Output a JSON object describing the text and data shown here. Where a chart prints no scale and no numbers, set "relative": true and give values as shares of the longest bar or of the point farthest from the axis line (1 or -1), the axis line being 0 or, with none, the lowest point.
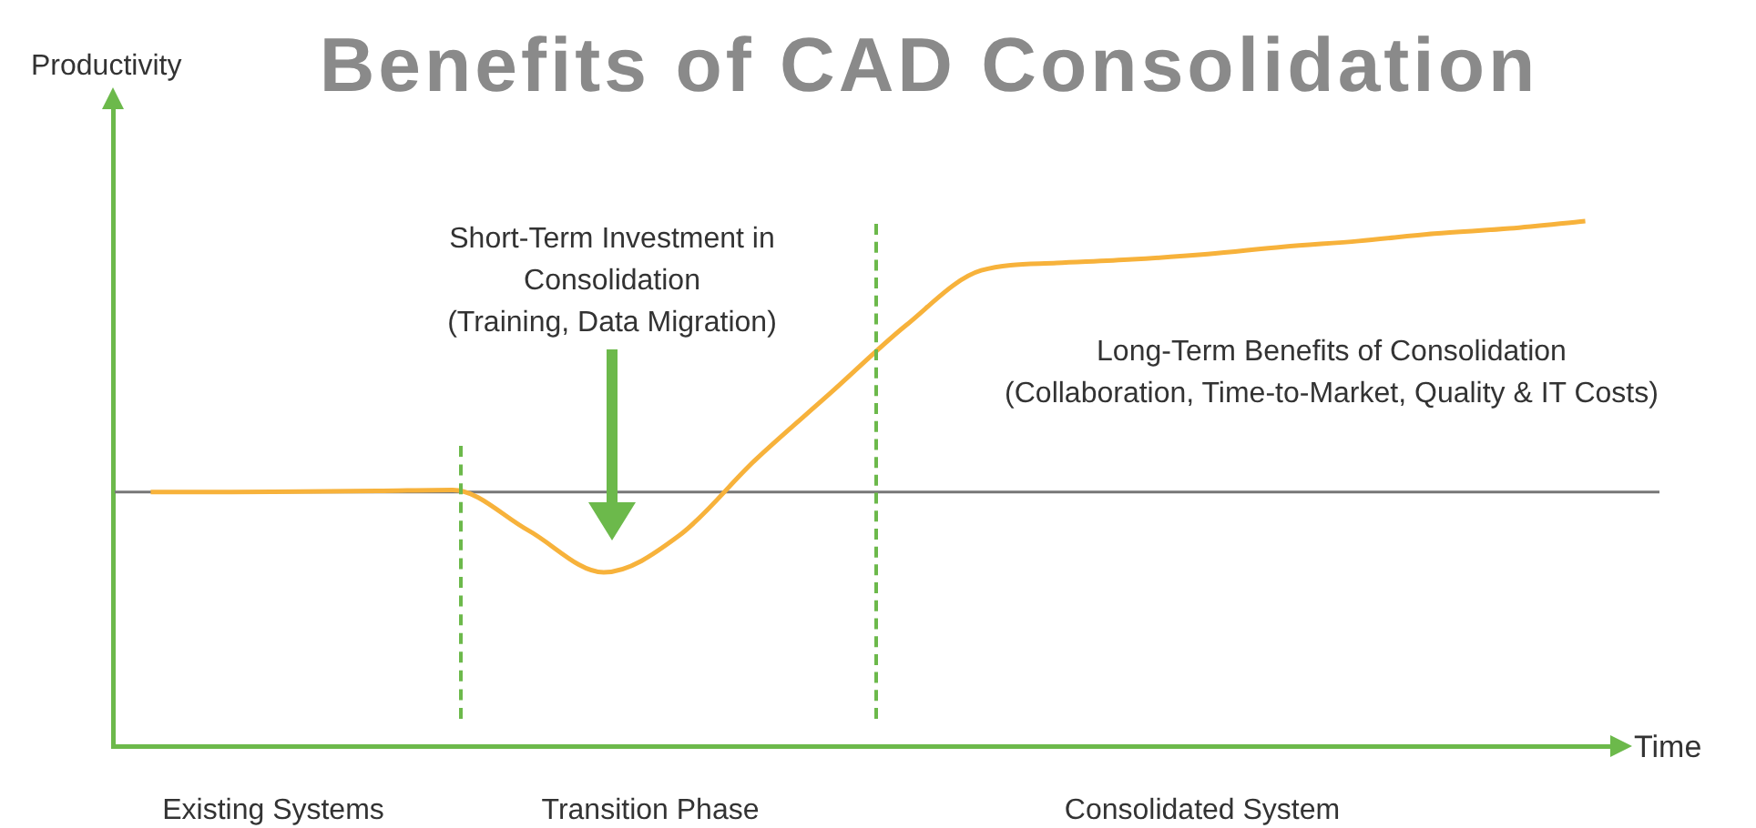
{
  "chart_data": {
    "type": "line",
    "title": "Benefits of CAD Consolidation",
    "xlabel": "Time",
    "ylabel": "Productivity",
    "relative": true,
    "marker": "none",
    "categories": [
      null,
      null,
      null,
      null,
      null,
      null,
      null,
      null,
      null,
      null,
      null,
      null,
      null,
      null,
      null,
      null,
      null,
      null,
      null,
      null
    ],
    "series": [
      {
        "color": "#f7b23b",
        "values": [
          0.484,
          0.484,
          0.485,
          0.486,
          0.488,
          0.411,
          0.331,
          0.401,
          0.544,
          0.672,
          0.801,
          0.906,
          0.92,
          0.927,
          0.937,
          0.951,
          0.962,
          0.976,
          0.986,
          1
        ]
      }
    ],
    "ref_lines": [
      {
        "axis": "y",
        "value": 0.484,
        "color": "#777777"
      }
    ],
    "annotations": [
      "Short-Term Investment in\nConsolidation\n(Training, Data Migration)",
      "Long-Term Benefits of Consolidation\n(Collaboration, Time-to-Market, Quality & IT Costs)",
      "Existing Systems",
      "Transition Phase",
      "Consolidated System"
    ]
  }
}
